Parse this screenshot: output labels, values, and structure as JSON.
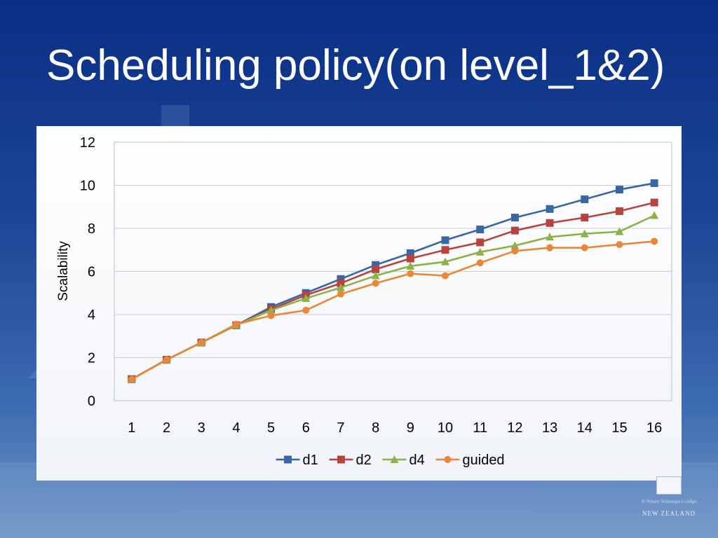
{
  "slide": {
    "title": "Scheduling policy(on level_1&2)"
  },
  "crest": {
    "motto": "Te Whare Wānanga o Otāgo",
    "country": "NEW ZEALAND"
  },
  "colors": {
    "title_text": "#ffffff",
    "d1": "#3a67a4",
    "d2": "#b5433f",
    "d4": "#8cb14a",
    "guided": "#e8873a",
    "gridline": "#c8cfd9"
  },
  "chart_data": {
    "type": "line",
    "title": "",
    "xlabel": "",
    "ylabel": "Scalability",
    "x": [
      1,
      2,
      3,
      4,
      5,
      6,
      7,
      8,
      9,
      10,
      11,
      12,
      13,
      14,
      15,
      16
    ],
    "ylim": [
      0,
      12
    ],
    "yticks": [
      0,
      2,
      4,
      6,
      8,
      10,
      12
    ],
    "grid": true,
    "legend_position": "bottom",
    "series": [
      {
        "name": "d1",
        "marker": "square",
        "color": "#3a67a4",
        "values": [
          1.0,
          1.9,
          2.7,
          3.5,
          4.35,
          5.0,
          5.65,
          6.3,
          6.85,
          7.45,
          7.95,
          8.5,
          8.9,
          9.35,
          9.8,
          10.1
        ]
      },
      {
        "name": "d2",
        "marker": "square",
        "color": "#b5433f",
        "values": [
          1.0,
          1.9,
          2.7,
          3.5,
          4.25,
          4.9,
          5.45,
          6.1,
          6.6,
          7.0,
          7.35,
          7.9,
          8.25,
          8.5,
          8.8,
          9.2
        ]
      },
      {
        "name": "d4",
        "marker": "triangle",
        "color": "#8cb14a",
        "values": [
          1.0,
          1.9,
          2.7,
          3.5,
          4.2,
          4.75,
          5.25,
          5.8,
          6.25,
          6.45,
          6.9,
          7.2,
          7.6,
          7.75,
          7.85,
          8.6
        ]
      },
      {
        "name": "guided",
        "marker": "circle",
        "color": "#e8873a",
        "values": [
          1.0,
          1.9,
          2.7,
          3.55,
          3.95,
          4.2,
          4.95,
          5.45,
          5.9,
          5.8,
          6.4,
          6.95,
          7.1,
          7.1,
          7.25,
          7.4
        ]
      }
    ]
  }
}
